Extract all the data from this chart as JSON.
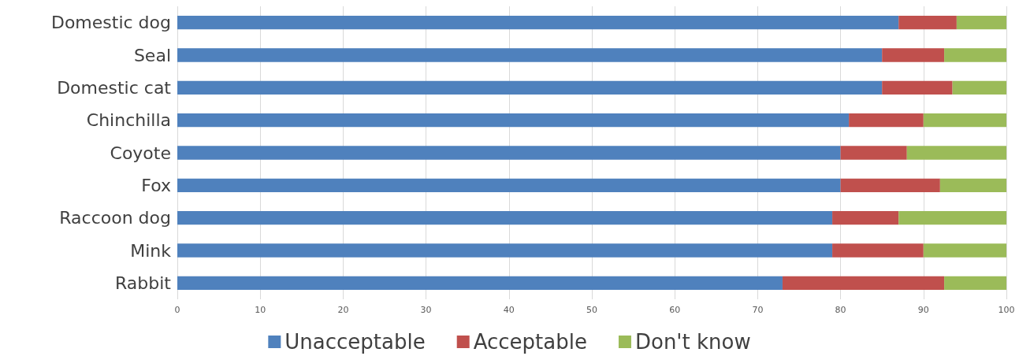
{
  "chart_data": {
    "type": "bar",
    "orientation": "horizontal",
    "stacked": true,
    "categories": [
      "Domestic dog",
      "Seal",
      "Domestic cat",
      "Chinchilla",
      "Coyote",
      "Fox",
      "Raccoon dog",
      "Mink",
      "Rabbit"
    ],
    "series": [
      {
        "name": "Unacceptable",
        "color": "#4f81bd",
        "values": [
          87,
          85,
          85,
          81,
          80,
          80,
          79,
          79,
          73
        ]
      },
      {
        "name": "Acceptable",
        "color": "#c0504d",
        "values": [
          7,
          7.5,
          8.5,
          9,
          8,
          12,
          8,
          11,
          19.5
        ]
      },
      {
        "name": "Don't know",
        "color": "#9bbb59",
        "values": [
          6,
          7.5,
          6.5,
          10,
          12,
          8,
          13,
          10,
          7.5
        ]
      }
    ],
    "xlim": [
      0,
      100
    ],
    "xticks": [
      0,
      10,
      20,
      30,
      40,
      50,
      60,
      70,
      80,
      90,
      100
    ],
    "grid": "x",
    "legend": "bottom"
  }
}
